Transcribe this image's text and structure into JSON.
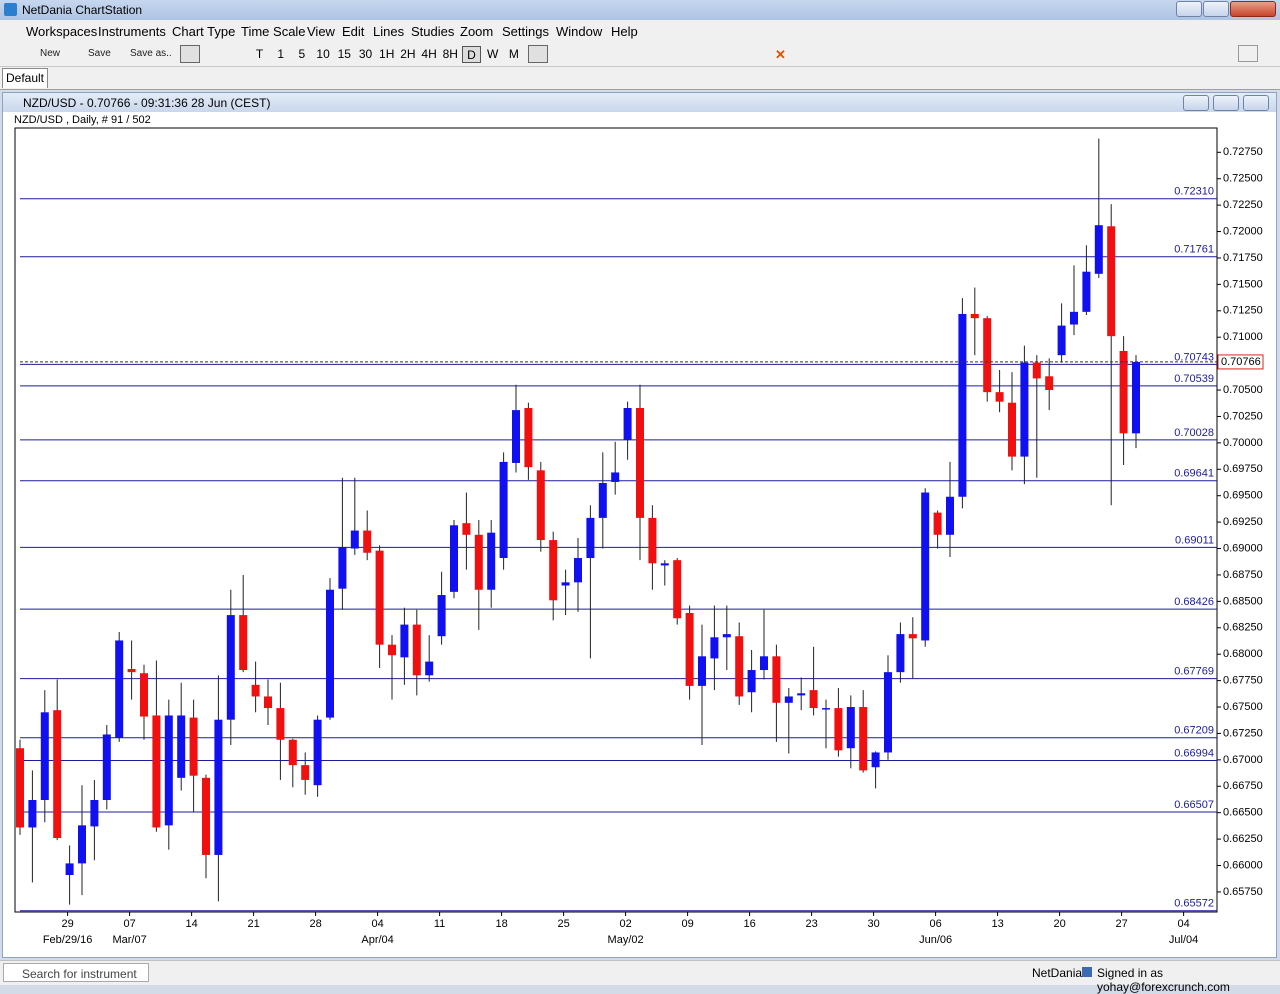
{
  "window": {
    "title": "NetDania ChartStation"
  },
  "menu": [
    "Workspaces",
    "Instruments",
    "Chart Type",
    "Time Scale",
    "View",
    "Edit",
    "Lines",
    "Studies",
    "Zoom",
    "Settings",
    "Window",
    "Help"
  ],
  "toolbar": [
    "New",
    "Save",
    "Save as.."
  ],
  "timeframes": [
    "T",
    "1",
    "5",
    "10",
    "15",
    "30",
    "1H",
    "2H",
    "4H",
    "8H",
    "D",
    "W",
    "M"
  ],
  "tab": "Default",
  "chart_window": {
    "title": "NZD/USD - 0.70766 - 09:31:36  28 Jun (CEST)",
    "subtitle": "NZD/USD , Daily, # 91 / 502"
  },
  "status": {
    "search": "Search for instrument",
    "brand": "NetDania",
    "signed_in": "Signed in as yohay@forexcrunch.com"
  },
  "chart_data": {
    "type": "candlestick",
    "up_color": "#1010f0",
    "down_color": "#f01010",
    "level_color": "#1c1c9c",
    "categories": [
      null,
      null,
      null,
      null,
      "29",
      null,
      null,
      null,
      null,
      "07",
      null,
      null,
      null,
      null,
      "14",
      null,
      null,
      null,
      null,
      "21",
      null,
      null,
      null,
      null,
      "28",
      null,
      null,
      null,
      null,
      "04",
      null,
      null,
      null,
      null,
      "11",
      null,
      null,
      null,
      null,
      "18",
      null,
      null,
      null,
      null,
      "25",
      null,
      null,
      null,
      null,
      "02",
      null,
      null,
      null,
      null,
      "09",
      null,
      null,
      null,
      null,
      "16",
      null,
      null,
      null,
      null,
      "23",
      null,
      null,
      null,
      null,
      "30",
      null,
      null,
      null,
      null,
      "06",
      null,
      null,
      null,
      null,
      "13",
      null,
      null,
      null,
      null,
      "20",
      null,
      null,
      null,
      null,
      "27",
      null,
      null,
      null,
      null,
      "04"
    ],
    "category_sublabels": [
      null,
      null,
      null,
      null,
      "Feb/29/16",
      null,
      null,
      null,
      null,
      "Mar/07",
      null,
      null,
      null,
      null,
      null,
      null,
      null,
      null,
      null,
      null,
      null,
      null,
      null,
      null,
      null,
      null,
      null,
      null,
      null,
      "Apr/04",
      null,
      null,
      null,
      null,
      null,
      null,
      null,
      null,
      null,
      null,
      null,
      null,
      null,
      null,
      null,
      null,
      null,
      null,
      null,
      "May/02",
      null,
      null,
      null,
      null,
      null,
      null,
      null,
      null,
      null,
      null,
      null,
      null,
      null,
      null,
      null,
      null,
      null,
      null,
      null,
      null,
      null,
      null,
      null,
      null,
      "Jun/06",
      null,
      null,
      null,
      null,
      null,
      null,
      null,
      null,
      null,
      null,
      null,
      null,
      null,
      null,
      null,
      null,
      null,
      null,
      null,
      "Jul/04"
    ],
    "open": [
      0.6711,
      0.6636,
      0.6662,
      0.6747,
      0.6591,
      0.6602,
      0.6637,
      0.6662,
      0.6721,
      0.6786,
      0.6782,
      0.6742,
      0.6638,
      0.6683,
      0.674,
      0.6683,
      0.661,
      0.6738,
      0.6837,
      0.6771,
      0.676,
      0.6749,
      0.6719,
      0.6695,
      0.6676,
      0.674,
      0.6862,
      0.69,
      0.6917,
      0.6898,
      0.6809,
      0.6797,
      0.6828,
      0.678,
      0.6817,
      0.6859,
      0.6924,
      0.6913,
      0.6861,
      0.6891,
      0.6981,
      0.7033,
      0.6974,
      0.6908,
      0.6865,
      0.6868,
      0.6891,
      0.6929,
      0.6963,
      0.7003,
      0.7033,
      0.6929,
      0.6884,
      0.6889,
      0.6839,
      0.677,
      0.6796,
      0.6816,
      0.6817,
      0.6764,
      0.6785,
      0.6798,
      0.6754,
      0.6761,
      0.6766,
      0.6748,
      0.6749,
      0.6711,
      0.675,
      0.6693,
      0.6707,
      0.6783,
      0.6819,
      0.6813,
      0.6934,
      0.6913,
      0.6949,
      0.7122,
      0.7118,
      0.7048,
      0.7038,
      0.6987,
      0.7076,
      0.7063,
      0.7083,
      0.7112,
      0.7124,
      0.716,
      0.7205,
      0.7087,
      0.7009,
      null,
      null,
      null,
      null
    ],
    "high": [
      0.6719,
      0.669,
      0.6766,
      0.6776,
      0.6619,
      0.6676,
      0.6681,
      0.6733,
      0.6821,
      0.6813,
      0.679,
      0.6794,
      0.6757,
      0.6773,
      0.6757,
      0.6686,
      0.678,
      0.6861,
      0.6875,
      0.6793,
      0.6776,
      0.6773,
      0.672,
      0.6707,
      0.6742,
      0.6872,
      0.6967,
      0.6967,
      0.6936,
      0.6903,
      0.6818,
      0.6844,
      0.6842,
      0.6818,
      0.6878,
      0.6927,
      0.6953,
      0.6927,
      0.6927,
      0.6991,
      0.7055,
      0.7038,
      0.6982,
      0.6916,
      0.688,
      0.691,
      0.6941,
      0.6991,
      0.7001,
      0.7039,
      0.7055,
      0.6941,
      0.6889,
      0.6891,
      0.6846,
      0.6828,
      0.6846,
      0.6846,
      0.683,
      0.6804,
      0.6842,
      0.6809,
      0.6768,
      0.6778,
      0.6807,
      0.6757,
      0.6768,
      0.6761,
      0.6766,
      0.6708,
      0.6799,
      0.683,
      0.6835,
      0.6957,
      0.6936,
      0.6982,
      0.7137,
      0.7147,
      0.712,
      0.7069,
      0.7067,
      0.7092,
      0.7083,
      0.708,
      0.7132,
      0.7168,
      0.7187,
      0.7288,
      0.7226,
      0.7101,
      0.7083,
      null,
      null,
      null,
      null
    ],
    "low": [
      0.6629,
      0.6584,
      0.6641,
      0.6624,
      0.6563,
      0.6572,
      0.6605,
      0.6653,
      0.6717,
      0.6757,
      0.6719,
      0.6632,
      0.6615,
      0.6671,
      0.6651,
      0.6588,
      0.6566,
      0.6714,
      0.6783,
      0.6745,
      0.6733,
      0.6681,
      0.6674,
      0.6667,
      0.6665,
      0.6738,
      0.6842,
      0.6894,
      0.6889,
      0.6787,
      0.6757,
      0.6771,
      0.6761,
      0.6774,
      0.6809,
      0.6853,
      0.688,
      0.6823,
      0.6844,
      0.688,
      0.6972,
      0.6965,
      0.6897,
      0.6832,
      0.6837,
      0.684,
      0.6796,
      0.69,
      0.6951,
      0.6984,
      0.6889,
      0.6861,
      0.6865,
      0.6828,
      0.6757,
      0.6714,
      0.6766,
      0.6785,
      0.6752,
      0.6745,
      0.6776,
      0.6717,
      0.6706,
      0.6747,
      0.6742,
      0.6711,
      0.6703,
      0.6692,
      0.6688,
      0.6673,
      0.67,
      0.6773,
      0.6777,
      0.6807,
      0.69,
      0.6892,
      0.6938,
      0.7083,
      0.7039,
      0.7029,
      0.6974,
      0.6961,
      0.6967,
      0.7031,
      0.7076,
      0.7102,
      0.7121,
      0.7156,
      0.6941,
      0.6979,
      0.6995,
      null,
      null,
      null,
      null
    ],
    "close": [
      0.6636,
      0.6662,
      0.6745,
      0.6626,
      0.6602,
      0.6638,
      0.6662,
      0.6724,
      0.6813,
      0.6783,
      0.6741,
      0.6636,
      0.6742,
      0.6742,
      0.6685,
      0.661,
      0.6738,
      0.6837,
      0.6785,
      0.676,
      0.6749,
      0.6719,
      0.6695,
      0.6681,
      0.6738,
      0.6861,
      0.6901,
      0.6917,
      0.6896,
      0.6809,
      0.6799,
      0.6828,
      0.678,
      0.6793,
      0.6856,
      0.6922,
      0.6913,
      0.6861,
      0.6915,
      0.6982,
      0.7031,
      0.6977,
      0.6908,
      0.6851,
      0.6868,
      0.6891,
      0.6929,
      0.6962,
      0.6972,
      0.7033,
      0.6929,
      0.6886,
      0.6886,
      0.6834,
      0.677,
      0.6798,
      0.6816,
      0.6819,
      0.676,
      0.6785,
      0.6798,
      0.6754,
      0.676,
      0.6763,
      0.6749,
      0.6749,
      0.6709,
      0.675,
      0.669,
      0.6707,
      0.6783,
      0.6819,
      0.6815,
      0.6953,
      0.6913,
      0.6949,
      0.7122,
      0.7118,
      0.7048,
      0.7039,
      0.6987,
      0.7076,
      0.7061,
      0.705,
      0.7111,
      0.7124,
      0.7162,
      0.7206,
      0.7101,
      0.7009,
      0.70766,
      null,
      null,
      null,
      null
    ],
    "levels": [
      {
        "value": 0.7231,
        "label": "0.72310"
      },
      {
        "value": 0.71761,
        "label": "0.71761"
      },
      {
        "value": 0.70743,
        "label": "0.70743"
      },
      {
        "value": 0.70539,
        "label": "0.70539"
      },
      {
        "value": 0.70028,
        "label": "0.70028"
      },
      {
        "value": 0.69641,
        "label": "0.69641"
      },
      {
        "value": 0.69011,
        "label": "0.69011"
      },
      {
        "value": 0.68426,
        "label": "0.68426"
      },
      {
        "value": 0.67769,
        "label": "0.67769"
      },
      {
        "value": 0.67209,
        "label": "0.67209"
      },
      {
        "value": 0.66994,
        "label": "0.66994"
      },
      {
        "value": 0.66507,
        "label": "0.66507"
      },
      {
        "value": 0.65572,
        "label": "0.65572"
      }
    ],
    "last_price": {
      "value": 0.70766,
      "label": "0.70766"
    },
    "ylim": [
      0.6556,
      0.7298
    ],
    "yticks": [
      {
        "value": 0.6575,
        "label": "0.65750"
      },
      {
        "value": 0.66,
        "label": "0.66000"
      },
      {
        "value": 0.6625,
        "label": "0.66250"
      },
      {
        "value": 0.665,
        "label": "0.66500"
      },
      {
        "value": 0.6675,
        "label": "0.66750"
      },
      {
        "value": 0.67,
        "label": "0.67000"
      },
      {
        "value": 0.6725,
        "label": "0.67250"
      },
      {
        "value": 0.675,
        "label": "0.67500"
      },
      {
        "value": 0.6775,
        "label": "0.67750"
      },
      {
        "value": 0.68,
        "label": "0.68000"
      },
      {
        "value": 0.6825,
        "label": "0.68250"
      },
      {
        "value": 0.685,
        "label": "0.68500"
      },
      {
        "value": 0.6875,
        "label": "0.68750"
      },
      {
        "value": 0.69,
        "label": "0.69000"
      },
      {
        "value": 0.6925,
        "label": "0.69250"
      },
      {
        "value": 0.695,
        "label": "0.69500"
      },
      {
        "value": 0.6975,
        "label": "0.69750"
      },
      {
        "value": 0.7,
        "label": "0.70000"
      },
      {
        "value": 0.7025,
        "label": "0.70250"
      },
      {
        "value": 0.705,
        "label": "0.70500"
      },
      {
        "value": 0.71,
        "label": "0.71000"
      },
      {
        "value": 0.7125,
        "label": "0.71250"
      },
      {
        "value": 0.715,
        "label": "0.71500"
      },
      {
        "value": 0.7175,
        "label": "0.71750"
      },
      {
        "value": 0.72,
        "label": "0.72000"
      },
      {
        "value": 0.7225,
        "label": "0.72250"
      },
      {
        "value": 0.725,
        "label": "0.72500"
      },
      {
        "value": 0.7275,
        "label": "0.72750"
      }
    ]
  }
}
